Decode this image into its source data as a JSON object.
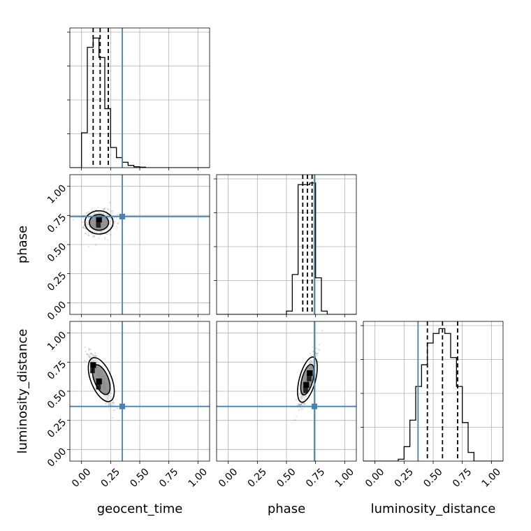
{
  "chart_data": {
    "type": "corner",
    "parameters": [
      "geocent_time",
      "phase",
      "luminosity_distance"
    ],
    "axis_range": [
      -0.1,
      1.1
    ],
    "ticks": [
      0.0,
      0.25,
      0.5,
      0.75,
      1.0
    ],
    "tick_labels": [
      "0.00",
      "0.25",
      "0.50",
      "0.75",
      "1.00"
    ],
    "truths": [
      0.35,
      0.74,
      0.37
    ],
    "truth_color": "#4682b4",
    "grid": true,
    "histograms": [
      {
        "parameter": "geocent_time",
        "bin_width": 0.05,
        "bins": [
          {
            "x0": -0.1,
            "x1": -0.05,
            "value": 0.0
          },
          {
            "x0": -0.05,
            "x1": 0.0,
            "value": 0.0
          },
          {
            "x0": 0.0,
            "x1": 0.05,
            "value": 0.045
          },
          {
            "x0": 0.05,
            "x1": 0.1,
            "value": 0.155
          },
          {
            "x0": 0.1,
            "x1": 0.15,
            "value": 0.167
          },
          {
            "x0": 0.15,
            "x1": 0.2,
            "value": 0.142
          },
          {
            "x0": 0.2,
            "x1": 0.25,
            "value": 0.076
          },
          {
            "x0": 0.25,
            "x1": 0.3,
            "value": 0.026
          },
          {
            "x0": 0.3,
            "x1": 0.35,
            "value": 0.013
          },
          {
            "x0": 0.35,
            "x1": 0.4,
            "value": 0.007
          },
          {
            "x0": 0.4,
            "x1": 0.45,
            "value": 0.003
          },
          {
            "x0": 0.45,
            "x1": 0.5,
            "value": 0.0012
          },
          {
            "x0": 0.5,
            "x1": 0.55,
            "value": 0.0006
          },
          {
            "x0": 0.55,
            "x1": 1.1,
            "value": 0.0
          }
        ],
        "quantiles": [
          0.1,
          0.16,
          0.23
        ],
        "ylim": [
          0,
          0.18
        ]
      },
      {
        "parameter": "phase",
        "bin_width": 0.05,
        "bins": [
          {
            "x0": -0.1,
            "x1": 0.5,
            "value": 0.0
          },
          {
            "x0": 0.5,
            "x1": 0.55,
            "value": 0.01
          },
          {
            "x0": 0.55,
            "x1": 0.6,
            "value": 0.12
          },
          {
            "x0": 0.6,
            "x1": 0.65,
            "value": 0.39
          },
          {
            "x0": 0.65,
            "x1": 0.7,
            "value": 0.39
          },
          {
            "x0": 0.7,
            "x1": 0.75,
            "value": 0.395
          },
          {
            "x0": 0.75,
            "x1": 0.8,
            "value": 0.11
          },
          {
            "x0": 0.8,
            "x1": 0.85,
            "value": 0.01
          },
          {
            "x0": 0.85,
            "x1": 1.1,
            "value": 0.0
          }
        ],
        "quantiles": [
          0.64,
          0.68,
          0.72
        ],
        "ylim": [
          0,
          0.42
        ]
      },
      {
        "parameter": "luminosity_distance",
        "bin_width": 0.05,
        "bins": [
          {
            "x0": -0.1,
            "x1": 0.2,
            "value": 0.0
          },
          {
            "x0": 0.2,
            "x1": 0.25,
            "value": 0.004
          },
          {
            "x0": 0.25,
            "x1": 0.3,
            "value": 0.03
          },
          {
            "x0": 0.3,
            "x1": 0.35,
            "value": 0.085
          },
          {
            "x0": 0.35,
            "x1": 0.4,
            "value": 0.155
          },
          {
            "x0": 0.4,
            "x1": 0.45,
            "value": 0.2
          },
          {
            "x0": 0.45,
            "x1": 0.5,
            "value": 0.245
          },
          {
            "x0": 0.5,
            "x1": 0.55,
            "value": 0.265
          },
          {
            "x0": 0.55,
            "x1": 0.6,
            "value": 0.275
          },
          {
            "x0": 0.6,
            "x1": 0.65,
            "value": 0.265
          },
          {
            "x0": 0.65,
            "x1": 0.7,
            "value": 0.215
          },
          {
            "x0": 0.7,
            "x1": 0.75,
            "value": 0.155
          },
          {
            "x0": 0.75,
            "x1": 0.8,
            "value": 0.08
          },
          {
            "x0": 0.8,
            "x1": 0.85,
            "value": 0.018
          },
          {
            "x0": 0.85,
            "x1": 1.1,
            "value": 0.0
          }
        ],
        "quantiles": [
          0.45,
          0.58,
          0.71
        ],
        "ylim": [
          0,
          0.29
        ]
      }
    ],
    "scatter_panels": [
      {
        "x": "geocent_time",
        "y": "phase",
        "center": [
          0.15,
          0.69
        ],
        "spread": [
          0.055,
          0.05
        ],
        "corr": 0.0,
        "blocks": [
          [
            0.15,
            0.69
          ]
        ]
      },
      {
        "x": "geocent_time",
        "y": "luminosity_distance",
        "center": [
          0.17,
          0.6
        ],
        "spread": [
          0.045,
          0.1
        ],
        "corr": -0.85,
        "blocks": [
          [
            0.1,
            0.7
          ],
          [
            0.15,
            0.56
          ]
        ]
      },
      {
        "x": "phase",
        "y": "luminosity_distance",
        "center": [
          0.68,
          0.6
        ],
        "spread": [
          0.035,
          0.1
        ],
        "corr": 0.8,
        "blocks": [
          [
            0.67,
            0.53
          ],
          [
            0.7,
            0.63
          ]
        ]
      }
    ]
  }
}
